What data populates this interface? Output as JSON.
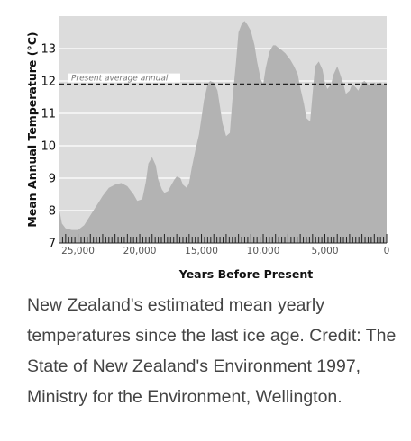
{
  "chart_data": {
    "type": "area",
    "title": "",
    "xlabel": "Years Before Present",
    "ylabel": "Mean Annual Temperature (°C)",
    "xlim": [
      26500,
      0
    ],
    "ylim": [
      7,
      14
    ],
    "x_ticks": [
      {
        "value": 25000,
        "label": "25,000"
      },
      {
        "value": 20000,
        "label": "20,000"
      },
      {
        "value": 15000,
        "label": "15,000"
      },
      {
        "value": 10000,
        "label": "10,000"
      },
      {
        "value": 5000,
        "label": "5,000"
      },
      {
        "value": 0,
        "label": "0"
      }
    ],
    "y_ticks": [
      {
        "value": 7,
        "label": "7"
      },
      {
        "value": 8,
        "label": "8"
      },
      {
        "value": 9,
        "label": "9"
      },
      {
        "value": 10,
        "label": "10"
      },
      {
        "value": 11,
        "label": "11"
      },
      {
        "value": 12,
        "label": "12"
      },
      {
        "value": 13,
        "label": "13"
      }
    ],
    "grid": true,
    "reference_line": {
      "value": 11.9,
      "label": "Present average annual"
    },
    "series": [
      {
        "fill": "#b3b3b3",
        "x": [
          26500,
          26300,
          26000,
          25500,
          25000,
          24500,
          24000,
          23500,
          23000,
          22500,
          22000,
          21500,
          21000,
          20500,
          20200,
          19800,
          19500,
          19300,
          19000,
          18700,
          18500,
          18200,
          18000,
          17700,
          17500,
          17200,
          17000,
          16700,
          16500,
          16200,
          16000,
          15800,
          15500,
          15200,
          15000,
          14800,
          14500,
          14300,
          14000,
          13700,
          13500,
          13300,
          13000,
          12700,
          12500,
          12200,
          12000,
          11700,
          11500,
          11300,
          11000,
          10700,
          10500,
          10200,
          10000,
          9800,
          9500,
          9200,
          9000,
          8700,
          8500,
          8200,
          8000,
          7800,
          7500,
          7200,
          7000,
          6700,
          6500,
          6200,
          6000,
          5800,
          5500,
          5200,
          5000,
          4800,
          4500,
          4300,
          4000,
          3800,
          3500,
          3300,
          3000,
          2800,
          2500,
          2300,
          2000,
          1800,
          1500,
          1300,
          1000,
          800,
          500,
          300,
          0
        ],
        "values": [
          8.0,
          7.6,
          7.45,
          7.4,
          7.4,
          7.55,
          7.85,
          8.15,
          8.45,
          8.7,
          8.8,
          8.85,
          8.75,
          8.5,
          8.3,
          8.35,
          8.9,
          9.45,
          9.65,
          9.4,
          8.95,
          8.65,
          8.55,
          8.6,
          8.75,
          8.95,
          9.05,
          9.0,
          8.8,
          8.7,
          8.85,
          9.3,
          9.85,
          10.35,
          10.85,
          11.4,
          11.9,
          12.0,
          11.95,
          11.7,
          11.2,
          10.7,
          10.3,
          10.4,
          11.4,
          12.6,
          13.5,
          13.8,
          13.85,
          13.75,
          13.55,
          13.1,
          12.6,
          12.05,
          11.9,
          12.4,
          12.9,
          13.1,
          13.1,
          13.0,
          12.95,
          12.85,
          12.75,
          12.65,
          12.45,
          12.2,
          11.8,
          11.3,
          10.85,
          10.75,
          11.6,
          12.45,
          12.6,
          12.35,
          11.95,
          11.75,
          11.9,
          12.2,
          12.45,
          12.25,
          11.9,
          11.6,
          11.7,
          11.9,
          11.8,
          11.7,
          11.95,
          12.0,
          11.9,
          11.85,
          11.95,
          11.9,
          11.95,
          11.9,
          11.9
        ]
      }
    ]
  },
  "caption": {
    "text": "New Zealand's estimated mean yearly temperatures since the last ice age.  Credit: The State of New Zealand's Environment 1997, Ministry for the Environment, Wellington."
  }
}
